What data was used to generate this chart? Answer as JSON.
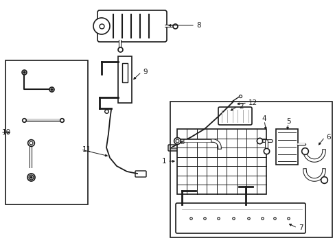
{
  "bg_color": "#ffffff",
  "fig_width": 4.89,
  "fig_height": 3.6,
  "dpi": 100,
  "line_color": "#1a1a1a",
  "label_fontsize": 7.5
}
